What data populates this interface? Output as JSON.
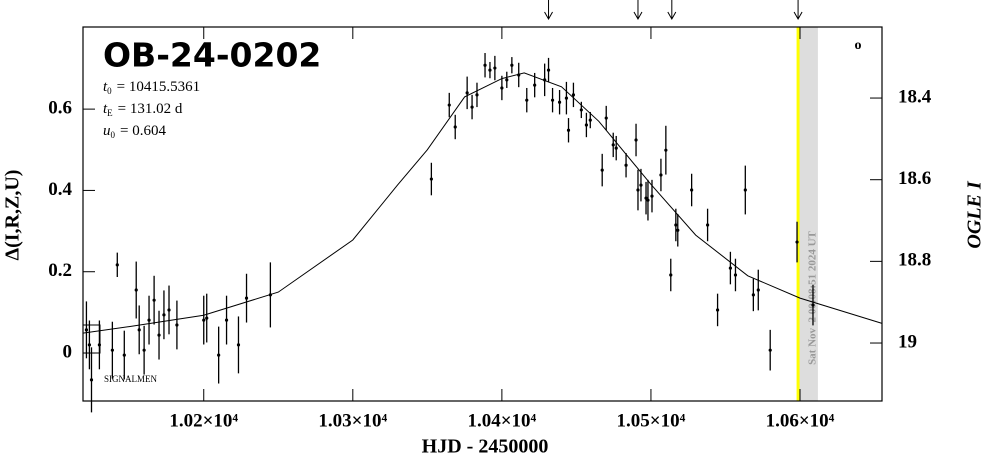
{
  "chart_data": {
    "type": "scatter",
    "title": "OB-24-0202",
    "params": [
      {
        "symbol": "t",
        "sub": "0",
        "text": "= 10415.5361"
      },
      {
        "symbol": "t",
        "sub": "E",
        "text": "= 131.02 d"
      },
      {
        "symbol": "u",
        "sub": "0",
        "text": "= 0.604"
      }
    ],
    "xlabel": "HJD - 2450000",
    "ylabel": "Δ(I,R,Z,U)",
    "y2label": "OGLE I",
    "signalmen": "SIGNALMEN",
    "marker_label": "o",
    "now_text": "Sat Nov  2 00:08:51 2024 UT",
    "xlim": [
      10119,
      10655
    ],
    "ylim": [
      -0.118,
      0.802
    ],
    "y2lim": [
      19.142,
      18.226
    ],
    "xticks": [
      {
        "value": 10200,
        "label": "1.02×10⁴"
      },
      {
        "value": 10300,
        "label": "1.03×10⁴"
      },
      {
        "value": 10400,
        "label": "1.04×10⁴"
      },
      {
        "value": 10500,
        "label": "1.05×10⁴"
      },
      {
        "value": 10600,
        "label": "1.06×10⁴"
      }
    ],
    "yticks": [
      0,
      0.2,
      0.4,
      0.6
    ],
    "y2ticks": [
      18.4,
      18.6,
      18.8,
      19
    ],
    "color": "#000000",
    "now_color": "#ffff00",
    "now_line": 10598.7,
    "now_band": [
      10598.7,
      10612
    ],
    "arrows": [
      10431.3,
      10491.3,
      10514,
      10598.7
    ],
    "x": [
      10121.3,
      10123.3,
      10124.7,
      10130,
      10138.7,
      10142,
      10146.7,
      10154.7,
      10156.7,
      10160,
      10163.3,
      10166.7,
      10170,
      10173.3,
      10176.7,
      10182,
      10200,
      10202,
      10210,
      10215.3,
      10223.3,
      10228.7,
      10244.7,
      10352.7,
      10364.7,
      10368.7,
      10376.7,
      10380,
      10383.3,
      10388.7,
      10392,
      10395.3,
      10400,
      10403.3,
      10406.7,
      10411.3,
      10416.7,
      10422,
      10428.7,
      10431.3,
      10434,
      10438.7,
      10443.3,
      10444.7,
      10448,
      10453.3,
      10456.7,
      10459.3,
      10467.3,
      10470,
      10474.7,
      10476.7,
      10483.3,
      10490,
      10491.3,
      10493.3,
      10496.7,
      10498,
      10500.7,
      10506.7,
      10510,
      10513.3,
      10516.7,
      10518,
      10527.3,
      10538,
      10544.7,
      10553.3,
      10556.7,
      10563.3,
      10568.7,
      10572,
      10580,
      10598,
      10608.7
    ],
    "values": [
      0.057,
      0.02,
      -0.066,
      0.02,
      0.007,
      0.217,
      -0.005,
      0.155,
      0.057,
      0.007,
      0.081,
      0.13,
      0.044,
      0.094,
      0.106,
      0.069,
      0.081,
      0.086,
      -0.005,
      0.081,
      0.02,
      0.135,
      0.143,
      0.428,
      0.61,
      0.556,
      0.64,
      0.605,
      0.635,
      0.708,
      0.696,
      0.701,
      0.652,
      0.672,
      0.708,
      0.684,
      0.622,
      0.659,
      0.672,
      0.696,
      0.622,
      0.617,
      0.627,
      0.548,
      0.635,
      0.598,
      0.561,
      0.573,
      0.45,
      0.578,
      0.512,
      0.504,
      0.462,
      0.524,
      0.401,
      0.413,
      0.381,
      0.376,
      0.386,
      0.438,
      0.499,
      0.192,
      0.315,
      0.302,
      0.401,
      0.315,
      0.106,
      0.209,
      0.192,
      0.401,
      0.143,
      0.155,
      0.007,
      0.273,
      0.118
    ],
    "errors": [
      0.07,
      0.06,
      0.08,
      0.06,
      0.07,
      0.03,
      0.06,
      0.07,
      0.06,
      0.06,
      0.06,
      0.06,
      0.06,
      0.06,
      0.06,
      0.06,
      0.06,
      0.06,
      0.07,
      0.06,
      0.07,
      0.06,
      0.08,
      0.04,
      0.03,
      0.03,
      0.04,
      0.03,
      0.03,
      0.03,
      0.02,
      0.03,
      0.03,
      0.02,
      0.02,
      0.03,
      0.03,
      0.03,
      0.04,
      0.03,
      0.03,
      0.03,
      0.04,
      0.03,
      0.03,
      0.02,
      0.03,
      0.02,
      0.04,
      0.03,
      0.03,
      0.03,
      0.03,
      0.04,
      0.05,
      0.04,
      0.04,
      0.05,
      0.04,
      0.04,
      0.06,
      0.04,
      0.04,
      0.04,
      0.04,
      0.04,
      0.04,
      0.04,
      0.04,
      0.06,
      0.04,
      0.05,
      0.05,
      0.05,
      0.05
    ],
    "model": {
      "x": [
        10119,
        10150,
        10200,
        10250,
        10300,
        10330,
        10350,
        10375,
        10400,
        10415,
        10440,
        10465,
        10500,
        10530,
        10565,
        10600,
        10655
      ],
      "values": [
        0.049,
        0.065,
        0.093,
        0.15,
        0.278,
        0.413,
        0.5,
        0.63,
        0.675,
        0.689,
        0.655,
        0.57,
        0.415,
        0.29,
        0.19,
        0.135,
        0.073
      ]
    }
  }
}
